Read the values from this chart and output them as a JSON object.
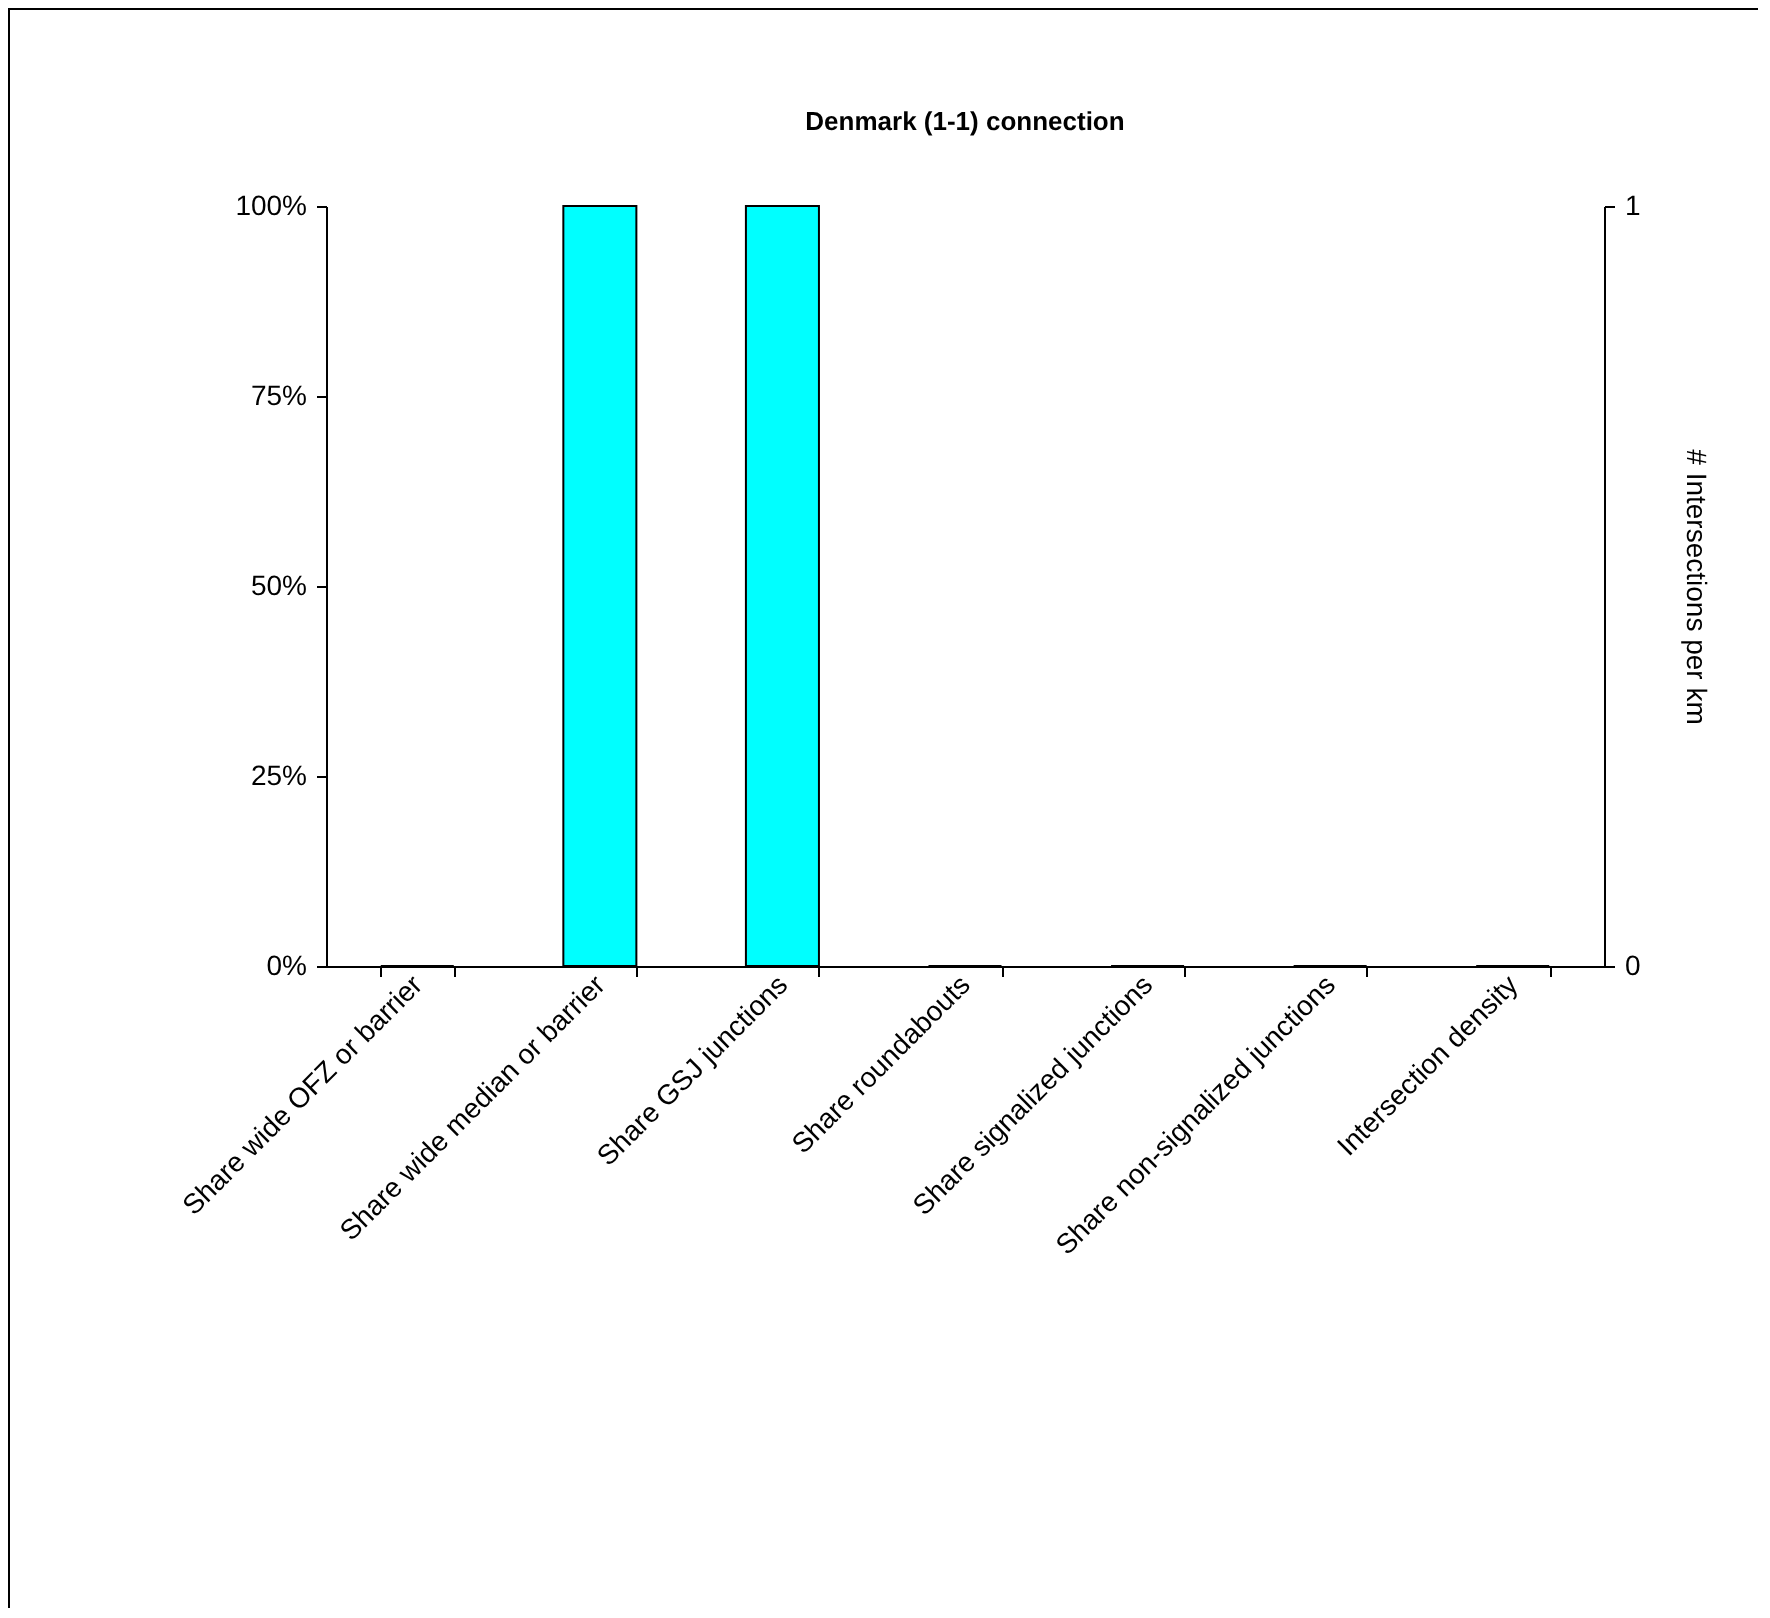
{
  "chart_data": {
    "type": "bar",
    "title": "Denmark (1-1) connection",
    "y2label": "# Intersections per km",
    "categories": [
      "Share wide OFZ or barrier",
      "Share wide median or barrier",
      "Share GSJ junctions",
      "Share roundabouts",
      "Share signalized junctions",
      "Share non-signalized junctions",
      "Intersection density"
    ],
    "series": [
      {
        "color": "#00ffff",
        "values": [
          0,
          100,
          100,
          0,
          0,
          0,
          null
        ]
      },
      {
        "color": "#00ffff",
        "axis": "y2",
        "values": [
          null,
          null,
          null,
          null,
          null,
          null,
          0
        ]
      }
    ],
    "ylim": [
      0,
      100
    ],
    "yticks": [
      {
        "value": 0,
        "label": "0%"
      },
      {
        "value": 25,
        "label": "25%"
      },
      {
        "value": 50,
        "label": "50%"
      },
      {
        "value": 75,
        "label": "75%"
      },
      {
        "value": 100,
        "label": "100%"
      }
    ],
    "y2lim": [
      0,
      1
    ],
    "y2ticks": [
      0,
      1
    ],
    "grid": false
  }
}
